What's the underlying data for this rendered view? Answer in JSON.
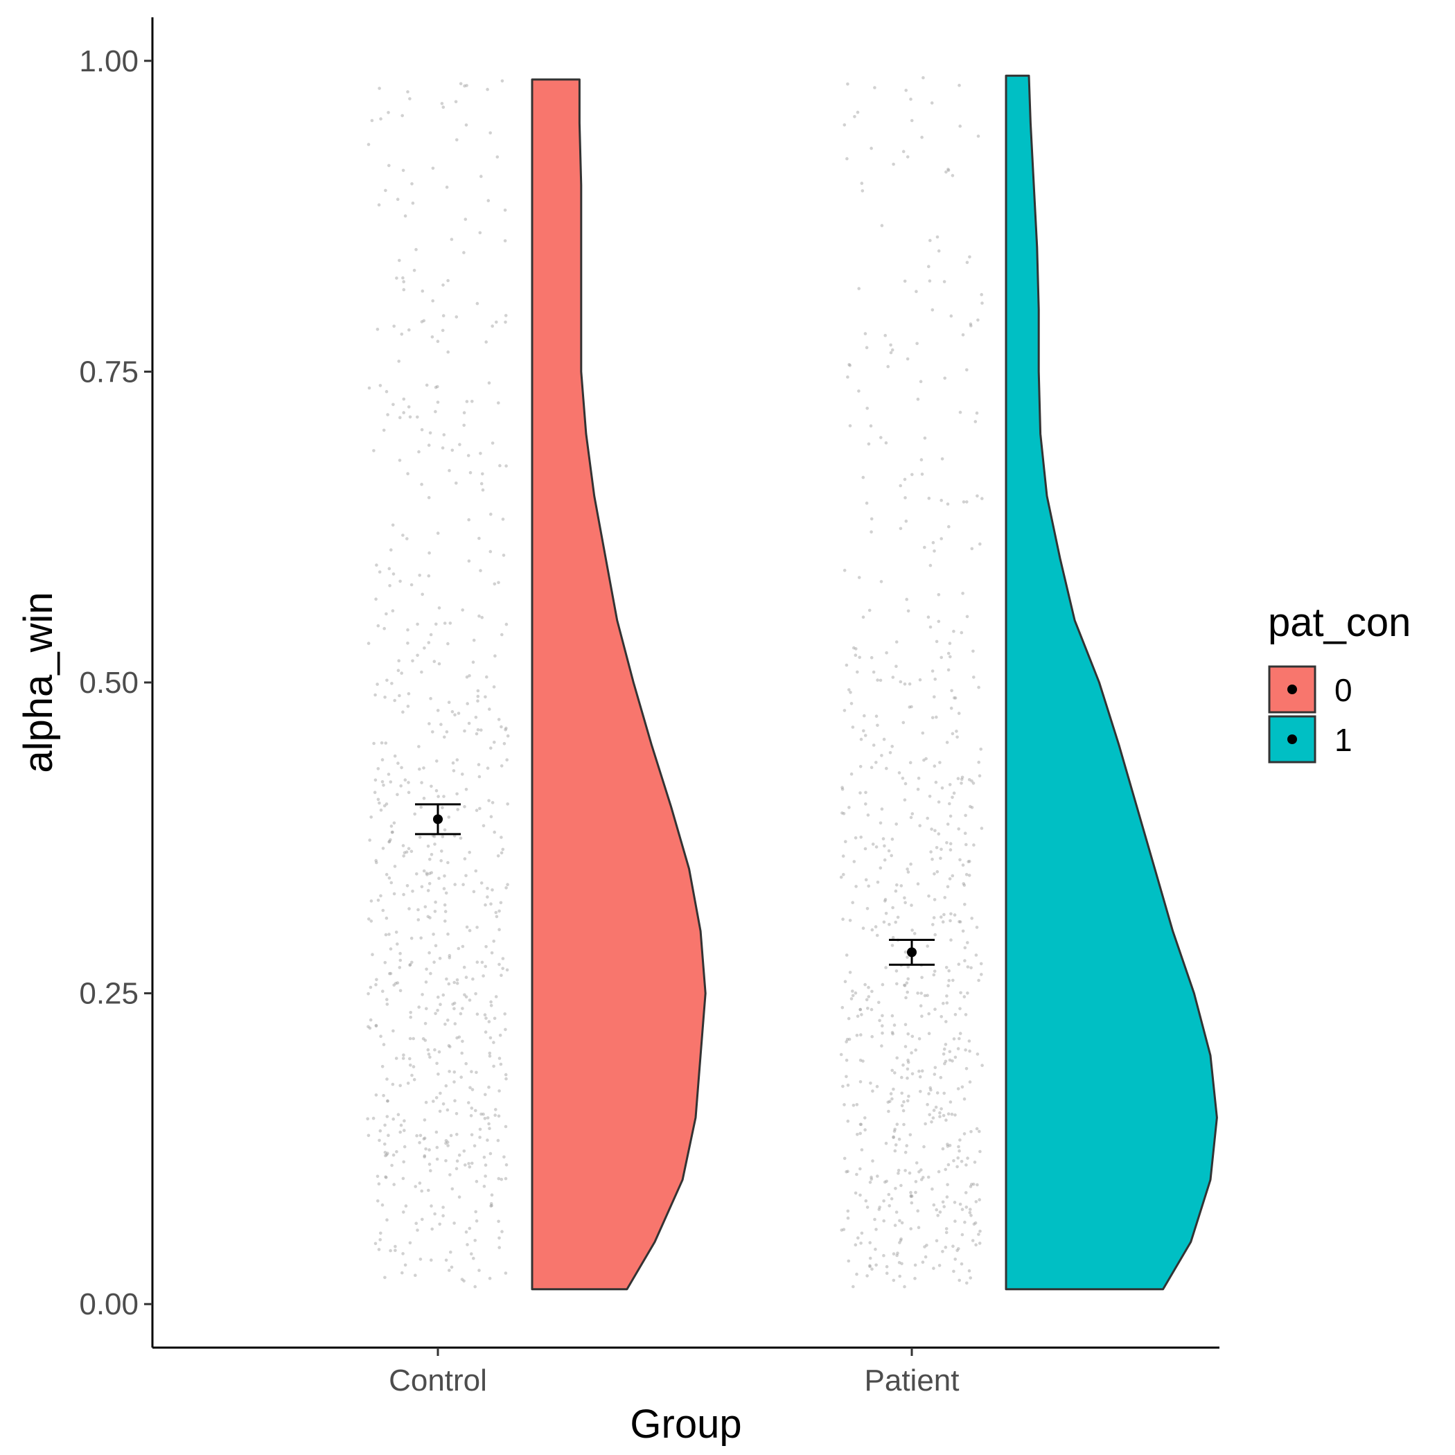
{
  "chart_data": {
    "type": "raincloud",
    "title": "",
    "xlabel": "Group",
    "ylabel": "alpha_win",
    "ylim": [
      -0.035,
      1.035
    ],
    "yticks": [
      "0.00",
      "0.25",
      "0.50",
      "0.75",
      "1.00"
    ],
    "categories": [
      "Control",
      "Patient"
    ],
    "legend": {
      "title": "pat_con",
      "placement": "right",
      "entries": [
        {
          "label": "0",
          "color": "#F8766D"
        },
        {
          "label": "1",
          "color": "#00BFC4"
        }
      ]
    },
    "series": [
      {
        "category": "Control",
        "pat_con": "0",
        "color": "#F8766D",
        "mean": 0.39,
        "ci_low": 0.378,
        "ci_high": 0.402,
        "range": [
          0.012,
          0.985
        ],
        "density_profile": [
          [
            0.012,
            0.58
          ],
          [
            0.05,
            0.75
          ],
          [
            0.1,
            0.92
          ],
          [
            0.15,
            1.0
          ],
          [
            0.2,
            1.03
          ],
          [
            0.25,
            1.06
          ],
          [
            0.3,
            1.03
          ],
          [
            0.35,
            0.96
          ],
          [
            0.4,
            0.85
          ],
          [
            0.45,
            0.73
          ],
          [
            0.5,
            0.62
          ],
          [
            0.55,
            0.52
          ],
          [
            0.6,
            0.45
          ],
          [
            0.65,
            0.38
          ],
          [
            0.7,
            0.33
          ],
          [
            0.75,
            0.3
          ],
          [
            0.8,
            0.3
          ],
          [
            0.85,
            0.3
          ],
          [
            0.9,
            0.3
          ],
          [
            0.95,
            0.29
          ],
          [
            0.985,
            0.29
          ]
        ]
      },
      {
        "category": "Patient",
        "pat_con": "1",
        "color": "#00BFC4",
        "mean": 0.283,
        "ci_low": 0.273,
        "ci_high": 0.293,
        "range": [
          0.012,
          0.988
        ],
        "density_profile": [
          [
            0.012,
            0.96
          ],
          [
            0.05,
            1.13
          ],
          [
            0.1,
            1.25
          ],
          [
            0.15,
            1.29
          ],
          [
            0.2,
            1.25
          ],
          [
            0.25,
            1.15
          ],
          [
            0.3,
            1.02
          ],
          [
            0.35,
            0.91
          ],
          [
            0.4,
            0.8
          ],
          [
            0.45,
            0.69
          ],
          [
            0.5,
            0.57
          ],
          [
            0.55,
            0.42
          ],
          [
            0.6,
            0.33
          ],
          [
            0.65,
            0.25
          ],
          [
            0.7,
            0.21
          ],
          [
            0.75,
            0.2
          ],
          [
            0.8,
            0.2
          ],
          [
            0.85,
            0.19
          ],
          [
            0.9,
            0.17
          ],
          [
            0.95,
            0.15
          ],
          [
            0.988,
            0.14
          ]
        ]
      }
    ]
  }
}
